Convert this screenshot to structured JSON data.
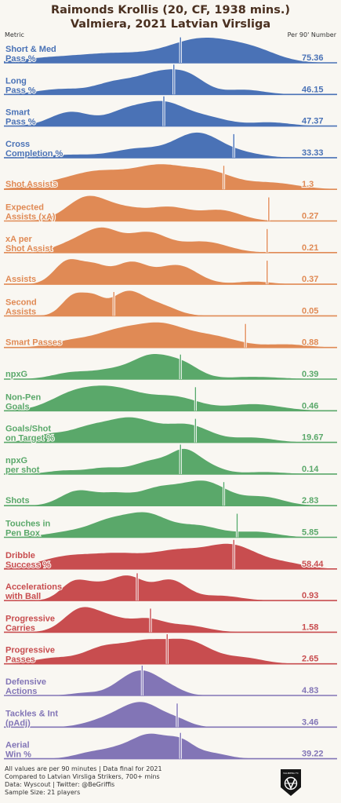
{
  "title": {
    "line1": "Raimonds Krollis (20, CF, 1938 mins.)",
    "line2": "Valmiera, 2021 Latvian Virsliga"
  },
  "header": {
    "left": "Metric",
    "right": "Per 90' Number"
  },
  "colors": {
    "passing": "#4a72b6",
    "creation": "#e08a55",
    "shooting": "#5aa86a",
    "possession": "#c84d4f",
    "defending": "#8275b6"
  },
  "chart_data": {
    "type": "area",
    "description_type": "ridgeline",
    "series": [
      {
        "label": [
          "Short & Med",
          "Pass %"
        ],
        "value": "75.36",
        "group": "passing",
        "player_position": 0.53,
        "peaks": [
          [
            0.13,
            0.18,
            0.09
          ],
          [
            0.32,
            0.35,
            0.1
          ],
          [
            0.6,
            1.0,
            0.11
          ],
          [
            0.76,
            0.3,
            0.07
          ]
        ]
      },
      {
        "label": [
          "Long",
          "Pass %"
        ],
        "value": "46.15",
        "group": "passing",
        "player_position": 0.51,
        "peaks": [
          [
            0.17,
            0.25,
            0.07
          ],
          [
            0.33,
            0.5,
            0.06
          ],
          [
            0.47,
            1.0,
            0.07
          ],
          [
            0.56,
            0.55,
            0.05
          ],
          [
            0.72,
            0.22,
            0.06
          ]
        ]
      },
      {
        "label": [
          "Smart",
          "Pass %"
        ],
        "value": "47.37",
        "group": "passing",
        "player_position": 0.48,
        "peaks": [
          [
            0.2,
            0.7,
            0.06
          ],
          [
            0.37,
            0.75,
            0.06
          ],
          [
            0.48,
            1.0,
            0.06
          ],
          [
            0.6,
            0.45,
            0.07
          ],
          [
            0.8,
            0.18,
            0.06
          ]
        ]
      },
      {
        "label": [
          "Cross",
          "Completion %"
        ],
        "value": "33.33",
        "group": "passing",
        "player_position": 0.69,
        "peaks": [
          [
            0.2,
            0.12,
            0.08
          ],
          [
            0.4,
            0.35,
            0.07
          ],
          [
            0.58,
            1.0,
            0.07
          ],
          [
            0.72,
            0.15,
            0.06
          ]
        ]
      },
      {
        "label": [
          "Shot Assists"
        ],
        "value": "1.3",
        "group": "creation",
        "player_position": 0.66,
        "peaks": [
          [
            0.12,
            0.15,
            0.07
          ],
          [
            0.28,
            0.8,
            0.09
          ],
          [
            0.47,
            1.0,
            0.08
          ],
          [
            0.62,
            0.7,
            0.07
          ],
          [
            0.8,
            0.3,
            0.08
          ]
        ]
      },
      {
        "label": [
          "Expected",
          "Assists (xA)"
        ],
        "value": "0.27",
        "group": "creation",
        "player_position": 0.795,
        "peaks": [
          [
            0.25,
            1.0,
            0.06
          ],
          [
            0.37,
            0.45,
            0.06
          ],
          [
            0.5,
            0.55,
            0.06
          ],
          [
            0.65,
            0.45,
            0.06
          ]
        ]
      },
      {
        "label": [
          "xA per",
          "Shot Assist"
        ],
        "value": "0.21",
        "group": "creation",
        "player_position": 0.79,
        "peaks": [
          [
            0.22,
            0.55,
            0.06
          ],
          [
            0.3,
            0.95,
            0.05
          ],
          [
            0.43,
            1.0,
            0.06
          ],
          [
            0.6,
            0.55,
            0.07
          ]
        ]
      },
      {
        "label": [
          "Assists"
        ],
        "value": "0.37",
        "group": "creation",
        "player_position": 0.79,
        "peaks": [
          [
            0.19,
            1.0,
            0.04
          ],
          [
            0.27,
            0.75,
            0.04
          ],
          [
            0.38,
            0.95,
            0.05
          ],
          [
            0.52,
            0.85,
            0.06
          ],
          [
            0.75,
            0.12,
            0.05
          ]
        ]
      },
      {
        "label": [
          "Second",
          "Assists"
        ],
        "value": "0.05",
        "group": "creation",
        "player_position": 0.33,
        "peaks": [
          [
            0.21,
            0.85,
            0.035
          ],
          [
            0.27,
            0.6,
            0.03
          ],
          [
            0.37,
            1.0,
            0.05
          ],
          [
            0.47,
            0.4,
            0.05
          ]
        ]
      },
      {
        "label": [
          "Smart Passes"
        ],
        "value": "0.88",
        "group": "creation",
        "player_position": 0.725,
        "peaks": [
          [
            0.2,
            0.3,
            0.06
          ],
          [
            0.34,
            0.75,
            0.07
          ],
          [
            0.47,
            1.0,
            0.07
          ],
          [
            0.62,
            0.55,
            0.08
          ],
          [
            0.85,
            0.15,
            0.06
          ]
        ]
      },
      {
        "label": [
          "npxG"
        ],
        "value": "0.39",
        "group": "shooting",
        "player_position": 0.53,
        "peaks": [
          [
            0.21,
            0.3,
            0.06
          ],
          [
            0.32,
            0.3,
            0.05
          ],
          [
            0.44,
            1.0,
            0.06
          ],
          [
            0.54,
            0.55,
            0.05
          ],
          [
            0.75,
            0.1,
            0.08
          ]
        ]
      },
      {
        "label": [
          "Non-Pen",
          "Goals"
        ],
        "value": "0.46",
        "group": "shooting",
        "player_position": 0.575,
        "peaks": [
          [
            0.2,
            0.55,
            0.07
          ],
          [
            0.33,
            1.0,
            0.09
          ],
          [
            0.52,
            0.55,
            0.07
          ],
          [
            0.75,
            0.3,
            0.08
          ]
        ]
      },
      {
        "label": [
          "Goals/Shot",
          "on Target %"
        ],
        "value": "19.67",
        "group": "shooting",
        "player_position": 0.575,
        "peaks": [
          [
            0.13,
            0.3,
            0.05
          ],
          [
            0.25,
            0.55,
            0.06
          ],
          [
            0.38,
            1.0,
            0.07
          ],
          [
            0.55,
            0.75,
            0.07
          ],
          [
            0.75,
            0.2,
            0.06
          ]
        ]
      },
      {
        "label": [
          "npxG",
          "per shot"
        ],
        "value": "0.14",
        "group": "shooting",
        "player_position": 0.53,
        "peaks": [
          [
            0.18,
            0.2,
            0.05
          ],
          [
            0.3,
            0.35,
            0.05
          ],
          [
            0.45,
            0.8,
            0.06
          ],
          [
            0.54,
            1.0,
            0.04
          ],
          [
            0.6,
            0.55,
            0.05
          ],
          [
            0.78,
            0.12,
            0.06
          ]
        ]
      },
      {
        "label": [
          "Shots"
        ],
        "value": "2.83",
        "group": "shooting",
        "player_position": 0.66,
        "peaks": [
          [
            0.22,
            0.6,
            0.05
          ],
          [
            0.33,
            0.45,
            0.05
          ],
          [
            0.46,
            0.65,
            0.06
          ],
          [
            0.6,
            1.0,
            0.07
          ],
          [
            0.78,
            0.35,
            0.06
          ]
        ]
      },
      {
        "label": [
          "Touches in",
          "Pen Box"
        ],
        "value": "5.85",
        "group": "shooting",
        "player_position": 0.7,
        "peaks": [
          [
            0.2,
            0.25,
            0.07
          ],
          [
            0.32,
            0.7,
            0.06
          ],
          [
            0.43,
            1.0,
            0.06
          ],
          [
            0.58,
            0.55,
            0.07
          ],
          [
            0.76,
            0.25,
            0.06
          ]
        ]
      },
      {
        "label": [
          "Dribble",
          "Success %"
        ],
        "value": "58.44",
        "group": "possession",
        "player_position": 0.69,
        "peaks": [
          [
            0.18,
            0.45,
            0.08
          ],
          [
            0.35,
            0.6,
            0.09
          ],
          [
            0.52,
            0.6,
            0.07
          ],
          [
            0.68,
            1.0,
            0.08
          ],
          [
            0.85,
            0.2,
            0.06
          ]
        ]
      },
      {
        "label": [
          "Accelerations",
          "with Ball"
        ],
        "value": "0.93",
        "group": "possession",
        "player_position": 0.4,
        "peaks": [
          [
            0.21,
            0.75,
            0.04
          ],
          [
            0.28,
            0.45,
            0.04
          ],
          [
            0.37,
            1.0,
            0.05
          ],
          [
            0.5,
            0.85,
            0.05
          ],
          [
            0.65,
            0.2,
            0.06
          ]
        ]
      },
      {
        "label": [
          "Progressive",
          "Carries"
        ],
        "value": "1.58",
        "group": "possession",
        "player_position": 0.44,
        "peaks": [
          [
            0.23,
            1.0,
            0.05
          ],
          [
            0.32,
            0.55,
            0.05
          ],
          [
            0.43,
            0.55,
            0.05
          ],
          [
            0.55,
            0.3,
            0.06
          ]
        ]
      },
      {
        "label": [
          "Progressive",
          "Passes"
        ],
        "value": "2.65",
        "group": "possession",
        "player_position": 0.49,
        "peaks": [
          [
            0.15,
            0.25,
            0.06
          ],
          [
            0.3,
            0.7,
            0.06
          ],
          [
            0.42,
            0.8,
            0.06
          ],
          [
            0.55,
            1.0,
            0.07
          ],
          [
            0.72,
            0.25,
            0.06
          ]
        ]
      },
      {
        "label": [
          "Defensive",
          "Actions"
        ],
        "value": "4.83",
        "group": "defending",
        "player_position": 0.415,
        "peaks": [
          [
            0.24,
            0.15,
            0.04
          ],
          [
            0.37,
            0.85,
            0.05
          ],
          [
            0.43,
            1.0,
            0.045
          ],
          [
            0.5,
            0.4,
            0.04
          ]
        ]
      },
      {
        "label": [
          "Tackles & Int",
          "(pAdj)"
        ],
        "value": "3.46",
        "group": "defending",
        "player_position": 0.52,
        "peaks": [
          [
            0.28,
            0.25,
            0.05
          ],
          [
            0.36,
            0.65,
            0.05
          ],
          [
            0.43,
            1.0,
            0.05
          ],
          [
            0.52,
            0.35,
            0.04
          ]
        ]
      },
      {
        "label": [
          "Aerial",
          "Win %"
        ],
        "value": "39.22",
        "group": "defending",
        "player_position": 0.53,
        "peaks": [
          [
            0.26,
            0.25,
            0.05
          ],
          [
            0.35,
            0.4,
            0.05
          ],
          [
            0.44,
            1.0,
            0.05
          ],
          [
            0.53,
            0.7,
            0.04
          ],
          [
            0.62,
            0.25,
            0.05
          ]
        ]
      }
    ]
  },
  "footer": {
    "line1": "All values are per 90 minutes | Data final for 2021",
    "line2": "Compared to Latvian Virsliga Strikers, 700+ mins",
    "line3": "Data: Wyscout | Twitter: @BeGriffis",
    "line4": "Sample Size: 21 players"
  },
  "logo": {
    "text": "VALMIERA FC",
    "icon": "valmiera-fc-crest-icon"
  }
}
